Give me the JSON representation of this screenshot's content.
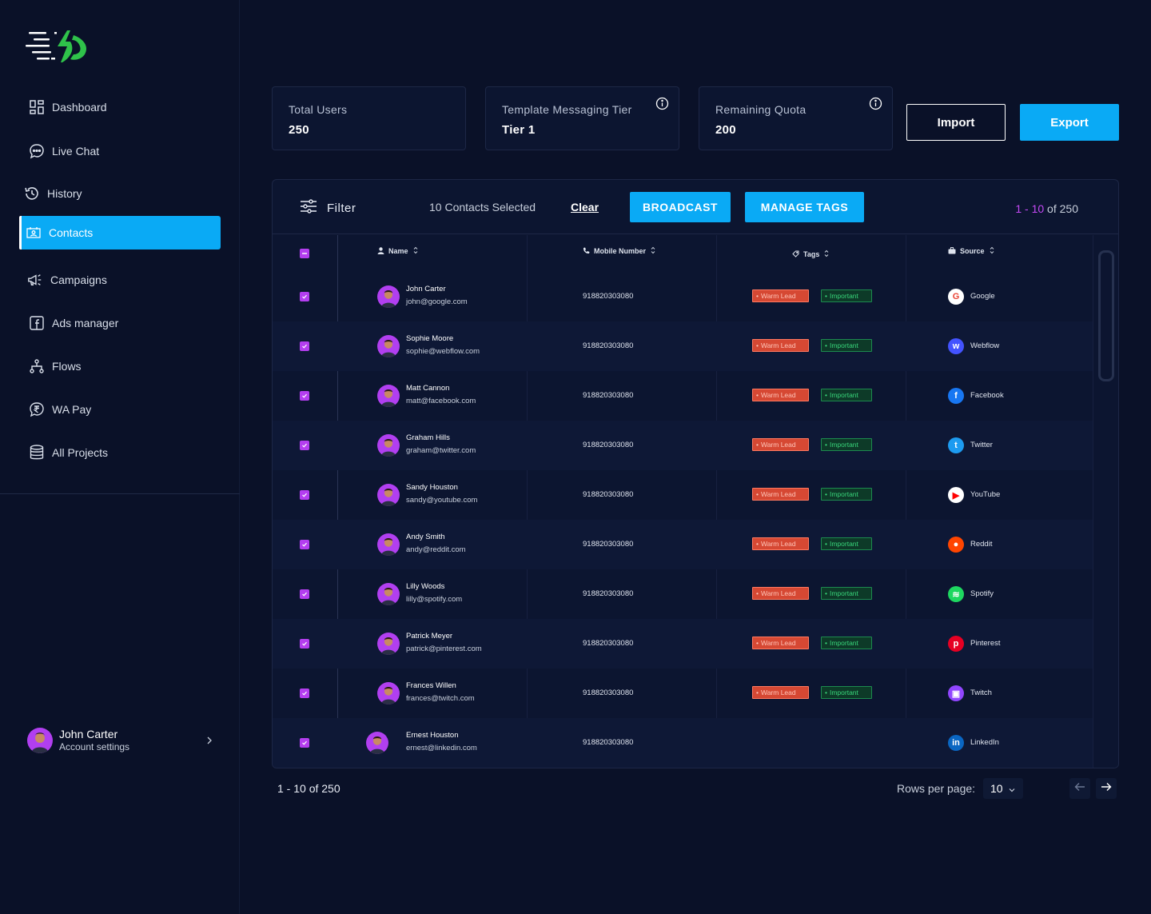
{
  "sidebar": {
    "nav": [
      {
        "label": "Dashboard",
        "icon": "dashboard-icon"
      },
      {
        "label": "Live Chat",
        "icon": "chat-icon"
      },
      {
        "label": "History",
        "icon": "history-icon"
      },
      {
        "label": "Contacts",
        "icon": "contacts-icon",
        "active": true
      },
      {
        "label": "Campaigns",
        "icon": "megaphone-icon"
      },
      {
        "label": "Ads manager",
        "icon": "facebook-icon"
      },
      {
        "label": "Flows",
        "icon": "flow-icon"
      },
      {
        "label": "WA Pay",
        "icon": "rupee-icon"
      },
      {
        "label": "All Projects",
        "icon": "database-icon"
      }
    ],
    "account": {
      "name": "John Carter",
      "sub": "Account settings"
    }
  },
  "stats": [
    {
      "label": "Total Users",
      "value": "250"
    },
    {
      "label": "Template Messaging Tier",
      "value": "Tier 1"
    },
    {
      "label": "Remaining Quota",
      "value": "200"
    }
  ],
  "actions": {
    "import": "Import",
    "export": "Export"
  },
  "toolbar": {
    "filter": "Filter",
    "selected": "10 Contacts Selected",
    "clear": "Clear",
    "broadcast": "BROADCAST",
    "manage_tags": "MANAGE TAGS",
    "range_hl": "1 - 10",
    "range_rest": " of 250"
  },
  "columns": {
    "name": "Name",
    "mobile": "Mobile Number",
    "tags": "Tags",
    "source": "Source"
  },
  "tags": {
    "warm": "Warm Lead",
    "important": "Important"
  },
  "rows": [
    {
      "name": "John Carter",
      "email": "john@google.com",
      "mobile": "918820303080",
      "source": "Google",
      "tags": true
    },
    {
      "name": "Sophie Moore",
      "email": "sophie@webflow.com",
      "mobile": "918820303080",
      "source": "Webflow",
      "tags": true
    },
    {
      "name": "Matt Cannon",
      "email": "matt@facebook.com",
      "mobile": "918820303080",
      "source": "Facebook",
      "tags": true
    },
    {
      "name": "Graham Hills",
      "email": "graham@twitter.com",
      "mobile": "918820303080",
      "source": "Twitter",
      "tags": true
    },
    {
      "name": "Sandy Houston",
      "email": "sandy@youtube.com",
      "mobile": "918820303080",
      "source": "YouTube",
      "tags": true
    },
    {
      "name": "Andy Smith",
      "email": "andy@reddit.com",
      "mobile": "918820303080",
      "source": "Reddit",
      "tags": true
    },
    {
      "name": "Lilly Woods",
      "email": "lilly@spotify.com",
      "mobile": "918820303080",
      "source": "Spotify",
      "tags": true
    },
    {
      "name": "Patrick Meyer",
      "email": "patrick@pinterest.com",
      "mobile": "918820303080",
      "source": "Pinterest",
      "tags": true
    },
    {
      "name": "Frances Willen",
      "email": "frances@twitch.com",
      "mobile": "918820303080",
      "source": "Twitch",
      "tags": true
    },
    {
      "name": "Ernest Houston",
      "email": "ernest@linkedin.com",
      "mobile": "918820303080",
      "source": "LinkedIn",
      "tags": false
    }
  ],
  "source_colors": {
    "Google": "#ffffff",
    "Webflow": "#4353ff",
    "Facebook": "#1877f2",
    "Twitter": "#1d9bf0",
    "YouTube": "#ffffff",
    "Reddit": "#ff4500",
    "Spotify": "#1ed760",
    "Pinterest": "#e60023",
    "Twitch": "#9146ff",
    "LinkedIn": "#0a66c2"
  },
  "footer": {
    "range": "1 - 10 of 250",
    "rows_per_page_label": "Rows per page:",
    "rows_per_page": "10"
  }
}
